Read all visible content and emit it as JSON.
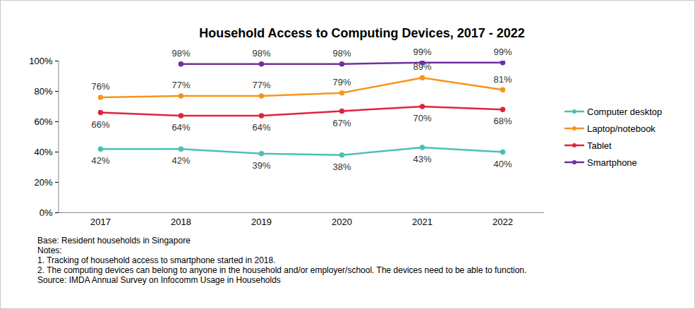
{
  "chart_data": {
    "type": "line",
    "title": "Household Access to Computing Devices, 2017 - 2022",
    "categories": [
      "2017",
      "2018",
      "2019",
      "2020",
      "2021",
      "2022"
    ],
    "series": [
      {
        "name": "Computer desktop",
        "color": "#4bc0b4",
        "marker": "circle",
        "values": [
          42,
          42,
          39,
          38,
          43,
          40
        ],
        "value_labels": [
          "42%",
          "42%",
          "39%",
          "38%",
          "43%",
          "40%"
        ]
      },
      {
        "name": "Laptop/notebook",
        "color": "#f7941d",
        "marker": "circle",
        "values": [
          76,
          77,
          77,
          79,
          89,
          81
        ],
        "value_labels": [
          "76%",
          "77%",
          "77%",
          "79%",
          "89%",
          "81%"
        ]
      },
      {
        "name": "Tablet",
        "color": "#e2233d",
        "marker": "circle",
        "values": [
          66,
          64,
          64,
          67,
          70,
          68
        ],
        "value_labels": [
          "66%",
          "64%",
          "64%",
          "67%",
          "70%",
          "68%"
        ]
      },
      {
        "name": "Smartphone",
        "color": "#7030a0",
        "marker": "circle",
        "values": [
          null,
          98,
          98,
          98,
          99,
          99
        ],
        "value_labels": [
          null,
          "98%",
          "98%",
          "98%",
          "99%",
          "99%"
        ]
      }
    ],
    "ylim": [
      0,
      100
    ],
    "yticks": [
      {
        "value": 0,
        "label": "0%"
      },
      {
        "value": 20,
        "label": "20%"
      },
      {
        "value": 40,
        "label": "40%"
      },
      {
        "value": 60,
        "label": "60%"
      },
      {
        "value": 80,
        "label": "80%"
      },
      {
        "value": 100,
        "label": "100%"
      }
    ],
    "grid": false,
    "legend": "right",
    "data_labels": true,
    "notes": [
      "Base: Resident households in Singapore",
      "Notes:",
      "1.  Tracking of household access to smartphone started in 2018.",
      "2. The computing devices can belong to anyone in the household and/or employer/school. The devices need to be able to function.",
      "Source: IMDA Annual Survey on Infocomm Usage in Households"
    ]
  }
}
